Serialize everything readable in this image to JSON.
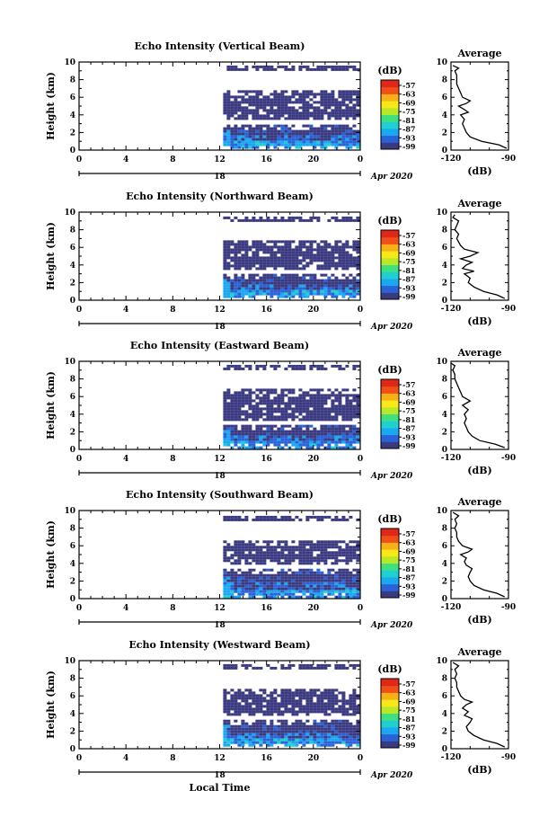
{
  "colors": {
    "scale": [
      "#3a3a80",
      "#2a63d8",
      "#1aa8f0",
      "#20d0d0",
      "#40e080",
      "#b8e828",
      "#f8e818",
      "#f8b018",
      "#f05018",
      "#e02818"
    ],
    "axes": "#000000",
    "background": "#ffffff"
  },
  "chart_data": [
    {
      "type": "heatmap",
      "title": "Echo Intensity (Vertical Beam)",
      "ylabel": "Height (km)",
      "xlabel": "",
      "x_ticks": [
        "0",
        "4",
        "8",
        "12",
        "16",
        "20",
        "0"
      ],
      "y_ticks": [
        "0",
        "2",
        "4",
        "6",
        "8",
        "10"
      ],
      "xlim": [
        0,
        24
      ],
      "ylim": [
        0,
        10
      ],
      "date_label": "18",
      "month_label": "Apr 2020",
      "colorbar": {
        "unit": "(dB)",
        "ticks": [
          "-57",
          "-63",
          "-69",
          "-75",
          "-81",
          "-87",
          "-93",
          "-99"
        ]
      },
      "data_start_hour": 12.3,
      "layers": [
        {
          "from_km": 0.3,
          "to_km": 2.9,
          "level": "strong"
        },
        {
          "from_km": 3.6,
          "to_km": 6.8,
          "level": "weak"
        },
        {
          "from_km": 9.1,
          "to_km": 9.6,
          "level": "weak"
        }
      ],
      "profile": {
        "title": "Average",
        "xlabel": "(dB)",
        "x_ticks": [
          "-120",
          "-90"
        ],
        "xlim": [
          -120,
          -90
        ],
        "y_ticks": [
          "0",
          "2",
          "4",
          "6",
          "8",
          "10"
        ],
        "heights": [
          0.2,
          0.6,
          1.0,
          1.5,
          2.0,
          2.5,
          3.0,
          3.5,
          4.0,
          4.3,
          4.6,
          5.0,
          5.3,
          5.6,
          6.0,
          6.5,
          7.0,
          7.5,
          8.0,
          8.5,
          9.0,
          9.3,
          9.6
        ],
        "values": [
          -91,
          -95,
          -104,
          -110,
          -112,
          -113,
          -114,
          -113,
          -115,
          -111,
          -113,
          -116,
          -112,
          -110,
          -114,
          -115,
          -116,
          -117,
          -117,
          -117,
          -118,
          -116,
          -119
        ]
      }
    },
    {
      "type": "heatmap",
      "title": "Echo Intensity (Northward Beam)",
      "ylabel": "Height (km)",
      "xlabel": "",
      "x_ticks": [
        "0",
        "4",
        "8",
        "12",
        "16",
        "20",
        "0"
      ],
      "y_ticks": [
        "0",
        "2",
        "4",
        "6",
        "8",
        "10"
      ],
      "xlim": [
        0,
        24
      ],
      "ylim": [
        0,
        10
      ],
      "date_label": "18",
      "month_label": "Apr 2020",
      "colorbar": {
        "unit": "(dB)",
        "ticks": [
          "-57",
          "-63",
          "-69",
          "-75",
          "-81",
          "-87",
          "-93",
          "-99"
        ]
      },
      "data_start_hour": 12.3,
      "layers": [
        {
          "from_km": 0.4,
          "to_km": 3.0,
          "level": "strong"
        },
        {
          "from_km": 3.5,
          "to_km": 6.8,
          "level": "weak"
        },
        {
          "from_km": 9.0,
          "to_km": 9.5,
          "level": "weak"
        }
      ],
      "profile": {
        "title": "Average",
        "xlabel": "(dB)",
        "x_ticks": [
          "-120",
          "-90"
        ],
        "xlim": [
          -120,
          -90
        ],
        "y_ticks": [
          "0",
          "2",
          "4",
          "6",
          "8",
          "10"
        ],
        "heights": [
          0.2,
          0.6,
          1.0,
          1.5,
          2.0,
          2.5,
          3.0,
          3.3,
          3.6,
          4.0,
          4.3,
          4.7,
          5.0,
          5.4,
          5.8,
          6.2,
          6.6,
          7.0,
          7.5,
          8.0,
          8.5,
          9.0,
          9.4,
          9.7
        ],
        "values": [
          -92,
          -96,
          -103,
          -108,
          -111,
          -110,
          -113,
          -108,
          -114,
          -112,
          -109,
          -115,
          -110,
          -106,
          -113,
          -115,
          -116,
          -117,
          -116,
          -118,
          -117,
          -116,
          -119,
          -118
        ]
      }
    },
    {
      "type": "heatmap",
      "title": "Echo Intensity (Eastward Beam)",
      "ylabel": "Height (km)",
      "xlabel": "",
      "x_ticks": [
        "0",
        "4",
        "8",
        "12",
        "16",
        "20",
        "0"
      ],
      "y_ticks": [
        "0",
        "2",
        "4",
        "6",
        "8",
        "10"
      ],
      "xlim": [
        0,
        24
      ],
      "ylim": [
        0,
        10
      ],
      "date_label": "18",
      "month_label": "Apr 2020",
      "colorbar": {
        "unit": "(dB)",
        "ticks": [
          "-57",
          "-63",
          "-69",
          "-75",
          "-81",
          "-87",
          "-93",
          "-99"
        ]
      },
      "data_start_hour": 12.3,
      "layers": [
        {
          "from_km": 0.3,
          "to_km": 2.8,
          "level": "strong"
        },
        {
          "from_km": 3.3,
          "to_km": 6.9,
          "level": "weak"
        },
        {
          "from_km": 9.2,
          "to_km": 9.6,
          "level": "weak"
        }
      ],
      "profile": {
        "title": "Average",
        "xlabel": "(dB)",
        "x_ticks": [
          "-120",
          "-90"
        ],
        "xlim": [
          -120,
          -90
        ],
        "y_ticks": [
          "0",
          "2",
          "4",
          "6",
          "8",
          "10"
        ],
        "heights": [
          0.2,
          0.6,
          1.0,
          1.5,
          2.0,
          2.5,
          3.0,
          3.5,
          4.0,
          4.5,
          5.0,
          5.5,
          6.0,
          6.5,
          7.0,
          7.5,
          8.0,
          8.5,
          9.0,
          9.5,
          9.8
        ],
        "values": [
          -92,
          -97,
          -105,
          -109,
          -111,
          -112,
          -113,
          -112,
          -113,
          -111,
          -114,
          -110,
          -114,
          -115,
          -116,
          -117,
          -118,
          -118,
          -119,
          -118,
          -120
        ]
      }
    },
    {
      "type": "heatmap",
      "title": "Echo Intensity (Southward Beam)",
      "ylabel": "Height (km)",
      "xlabel": "",
      "x_ticks": [
        "0",
        "4",
        "8",
        "12",
        "16",
        "20",
        "0"
      ],
      "y_ticks": [
        "0",
        "2",
        "4",
        "6",
        "8",
        "10"
      ],
      "xlim": [
        0,
        24
      ],
      "ylim": [
        0,
        10
      ],
      "date_label": "18",
      "month_label": "Apr 2020",
      "colorbar": {
        "unit": "(dB)",
        "ticks": [
          "-57",
          "-63",
          "-69",
          "-75",
          "-81",
          "-87",
          "-93",
          "-99"
        ]
      },
      "data_start_hour": 12.3,
      "layers": [
        {
          "from_km": 0.3,
          "to_km": 3.4,
          "level": "strong"
        },
        {
          "from_km": 4.0,
          "to_km": 6.6,
          "level": "weak"
        },
        {
          "from_km": 8.9,
          "to_km": 9.4,
          "level": "weak"
        }
      ],
      "profile": {
        "title": "Average",
        "xlabel": "(dB)",
        "x_ticks": [
          "-120",
          "-90"
        ],
        "xlim": [
          -120,
          -90
        ],
        "y_ticks": [
          "0",
          "2",
          "4",
          "6",
          "8",
          "10"
        ],
        "heights": [
          0.2,
          0.6,
          1.0,
          1.5,
          2.0,
          2.5,
          3.0,
          3.4,
          3.8,
          4.2,
          4.6,
          5.0,
          5.3,
          5.6,
          6.0,
          6.5,
          7.0,
          7.5,
          8.0,
          8.5,
          9.0,
          9.4,
          9.8
        ],
        "values": [
          -92,
          -96,
          -103,
          -108,
          -110,
          -111,
          -110,
          -109,
          -112,
          -113,
          -112,
          -115,
          -111,
          -109,
          -114,
          -116,
          -117,
          -117,
          -118,
          -117,
          -118,
          -116,
          -119
        ]
      }
    },
    {
      "type": "heatmap",
      "title": "Echo Intensity (Westward Beam)",
      "ylabel": "Height (km)",
      "xlabel": "Local Time",
      "x_ticks": [
        "0",
        "4",
        "8",
        "12",
        "16",
        "20",
        "0"
      ],
      "y_ticks": [
        "0",
        "2",
        "4",
        "6",
        "8",
        "10"
      ],
      "xlim": [
        0,
        24
      ],
      "ylim": [
        0,
        10
      ],
      "date_label": "18",
      "month_label": "Apr 2020",
      "colorbar": {
        "unit": "(dB)",
        "ticks": [
          "-57",
          "-63",
          "-69",
          "-75",
          "-81",
          "-87",
          "-93",
          "-99"
        ]
      },
      "data_start_hour": 12.3,
      "layers": [
        {
          "from_km": 0.3,
          "to_km": 3.3,
          "level": "strong"
        },
        {
          "from_km": 3.9,
          "to_km": 6.8,
          "level": "weak"
        },
        {
          "from_km": 9.1,
          "to_km": 9.6,
          "level": "weak"
        }
      ],
      "profile": {
        "title": "Average",
        "xlabel": "(dB)",
        "x_ticks": [
          "-120",
          "-90"
        ],
        "xlim": [
          -120,
          -90
        ],
        "y_ticks": [
          "0",
          "2",
          "4",
          "6",
          "8",
          "10"
        ],
        "heights": [
          0.2,
          0.6,
          1.0,
          1.5,
          2.0,
          2.5,
          3.0,
          3.4,
          3.8,
          4.2,
          4.6,
          5.0,
          5.3,
          5.6,
          6.0,
          6.5,
          7.0,
          7.5,
          8.0,
          8.5,
          9.0,
          9.4,
          9.8
        ],
        "values": [
          -92,
          -96,
          -103,
          -108,
          -111,
          -112,
          -110,
          -109,
          -113,
          -111,
          -114,
          -112,
          -109,
          -113,
          -115,
          -116,
          -117,
          -117,
          -118,
          -117,
          -118,
          -116,
          -119
        ]
      }
    }
  ]
}
